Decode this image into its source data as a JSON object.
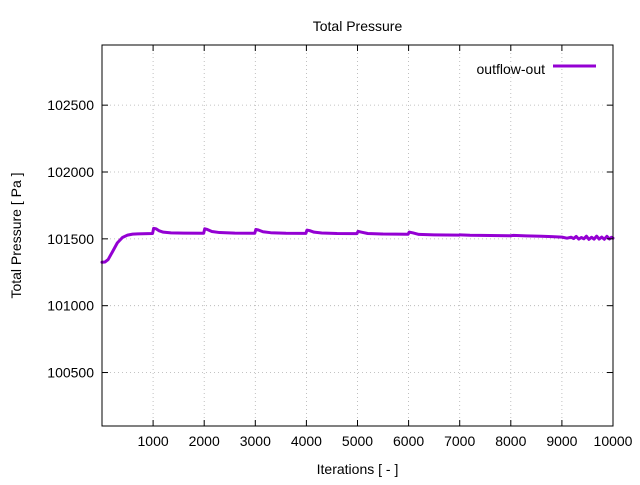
{
  "chart_data": {
    "type": "line",
    "title": "Total Pressure",
    "xlabel": "Iterations [ - ]",
    "ylabel": "Total Pressure [ Pa ]",
    "xlim": [
      0,
      10000
    ],
    "ylim": [
      100100,
      102950
    ],
    "xticks": [
      1000,
      2000,
      3000,
      4000,
      5000,
      6000,
      7000,
      8000,
      9000,
      10000
    ],
    "yticks": [
      100500,
      101000,
      101500,
      102000,
      102500
    ],
    "grid": true,
    "legend_position": "top-right",
    "series": [
      {
        "name": "outflow-out",
        "color": "#9400d3",
        "points": [
          [
            0,
            101325
          ],
          [
            60,
            101327
          ],
          [
            120,
            101345
          ],
          [
            200,
            101400
          ],
          [
            300,
            101470
          ],
          [
            400,
            101510
          ],
          [
            500,
            101528
          ],
          [
            600,
            101535
          ],
          [
            700,
            101537
          ],
          [
            800,
            101538
          ],
          [
            990,
            101540
          ],
          [
            1010,
            101578
          ],
          [
            1060,
            101575
          ],
          [
            1120,
            101560
          ],
          [
            1200,
            101550
          ],
          [
            1350,
            101545
          ],
          [
            1600,
            101543
          ],
          [
            1990,
            101542
          ],
          [
            2010,
            101575
          ],
          [
            2060,
            101570
          ],
          [
            2150,
            101555
          ],
          [
            2300,
            101547
          ],
          [
            2600,
            101543
          ],
          [
            2990,
            101542
          ],
          [
            3010,
            101570
          ],
          [
            3060,
            101566
          ],
          [
            3150,
            101553
          ],
          [
            3300,
            101546
          ],
          [
            3600,
            101542
          ],
          [
            3990,
            101541
          ],
          [
            4010,
            101565
          ],
          [
            4060,
            101562
          ],
          [
            4150,
            101550
          ],
          [
            4300,
            101544
          ],
          [
            4600,
            101540
          ],
          [
            4990,
            101539
          ],
          [
            5010,
            101556
          ],
          [
            5080,
            101550
          ],
          [
            5200,
            101540
          ],
          [
            5500,
            101536
          ],
          [
            5990,
            101534
          ],
          [
            6010,
            101550
          ],
          [
            6080,
            101545
          ],
          [
            6200,
            101533
          ],
          [
            6500,
            101530
          ],
          [
            6990,
            101528
          ],
          [
            7010,
            101530
          ],
          [
            7200,
            101527
          ],
          [
            7600,
            101525
          ],
          [
            8000,
            101523
          ],
          [
            8050,
            101526
          ],
          [
            8300,
            101522
          ],
          [
            8600,
            101519
          ],
          [
            8800,
            101517
          ],
          [
            9000,
            101513
          ],
          [
            9100,
            101505
          ],
          [
            9180,
            101512
          ],
          [
            9230,
            101502
          ],
          [
            9280,
            101518
          ],
          [
            9330,
            101498
          ],
          [
            9380,
            101510
          ],
          [
            9430,
            101500
          ],
          [
            9480,
            101520
          ],
          [
            9530,
            101496
          ],
          [
            9580,
            101512
          ],
          [
            9630,
            101498
          ],
          [
            9680,
            101520
          ],
          [
            9730,
            101498
          ],
          [
            9780,
            101513
          ],
          [
            9830,
            101497
          ],
          [
            9880,
            101519
          ],
          [
            9930,
            101499
          ],
          [
            9970,
            101512
          ],
          [
            10000,
            101505
          ]
        ]
      }
    ]
  }
}
